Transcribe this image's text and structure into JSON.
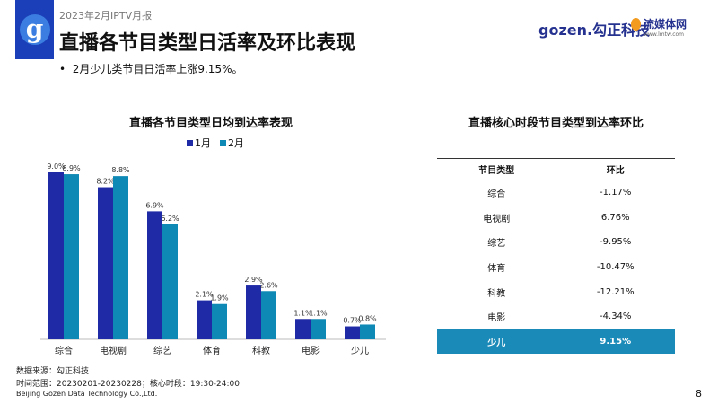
{
  "header": {
    "subtitle": "2023年2月IPTV月报",
    "title": "直播各节目类型日活率及环比表现",
    "bullet": "2月少儿类节目日活率上涨9.15%。",
    "brand_gozen": "gozen.勾正科技",
    "brand_lmtw": "流媒体网",
    "brand_lmtw_url": "www.lmtw.com",
    "logo_letter": "g"
  },
  "chart_data": {
    "type": "bar",
    "title": "直播各节目类型日均到达率表现",
    "categories": [
      "综合",
      "电视剧",
      "综艺",
      "体育",
      "科教",
      "电影",
      "少儿"
    ],
    "series": [
      {
        "name": "1月",
        "color": "#1f2aa6",
        "values": [
          9.0,
          8.2,
          6.9,
          2.1,
          2.9,
          1.1,
          0.7
        ]
      },
      {
        "name": "2月",
        "color": "#0e88b4",
        "values": [
          8.9,
          8.8,
          6.2,
          1.9,
          2.6,
          1.1,
          0.8
        ]
      }
    ],
    "labels": [
      [
        "9.0%",
        "8.2%",
        "6.9%",
        "2.1%",
        "2.9%",
        "1.1%",
        "0.7%"
      ],
      [
        "8.9%",
        "8.8%",
        "6.2%",
        "1.9%",
        "2.6%",
        "1.1%",
        "0.8%"
      ]
    ],
    "ylim": [
      0,
      10
    ],
    "legend": "top"
  },
  "table": {
    "title": "直播核心时段节目类型到达率环比",
    "headers": [
      "节目类型",
      "环比"
    ],
    "rows": [
      [
        "综合",
        "-1.17%"
      ],
      [
        "电视剧",
        "6.76%"
      ],
      [
        "综艺",
        "-9.95%"
      ],
      [
        "体育",
        "-10.47%"
      ],
      [
        "科教",
        "-12.21%"
      ],
      [
        "电影",
        "-4.34%"
      ],
      [
        "少儿",
        "9.15%"
      ]
    ],
    "highlight_color": "#1a8ab8"
  },
  "footer": {
    "source": "数据来源：勾正科技",
    "range": "时间范围：20230201-20230228；核心时段：19:30-24:00",
    "company": "Beijing Gozen Data Technology Co.,Ltd.",
    "page": "8"
  }
}
